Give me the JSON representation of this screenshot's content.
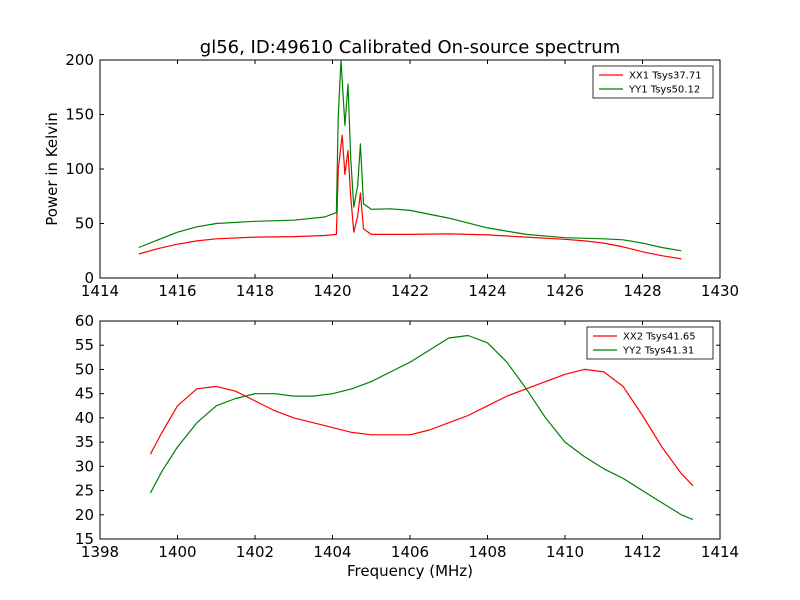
{
  "figure": {
    "title": "gl56, ID:49610 Calibrated On-source spectrum",
    "xlabel": "Frequency (MHz)",
    "ylabel_top": "Power in Kelvin"
  },
  "chart_data": [
    {
      "type": "line",
      "title": "gl56, ID:49610 Calibrated On-source spectrum",
      "xlabel": "",
      "ylabel": "Power in Kelvin",
      "xlim": [
        1414,
        1430
      ],
      "ylim": [
        0,
        200
      ],
      "xticks": [
        1414,
        1416,
        1418,
        1420,
        1422,
        1424,
        1426,
        1428,
        1430
      ],
      "yticks": [
        0,
        50,
        100,
        150,
        200
      ],
      "grid": false,
      "legend": "top-right",
      "series": [
        {
          "name": "XX1 Tsys37.71",
          "color": "#ff0000",
          "x": [
            1415,
            1415.5,
            1416,
            1416.5,
            1417,
            1418,
            1419,
            1419.8,
            1420.1,
            1420.15,
            1420.25,
            1420.32,
            1420.4,
            1420.47,
            1420.55,
            1420.65,
            1420.72,
            1420.8,
            1421,
            1422,
            1423,
            1424,
            1425,
            1426,
            1426.5,
            1427,
            1427.5,
            1428,
            1428.5,
            1429
          ],
          "y": [
            22,
            27,
            31,
            34,
            36,
            37.5,
            38,
            39,
            40,
            100,
            131,
            95,
            117,
            75,
            42,
            57,
            78,
            45,
            40,
            40,
            40.5,
            39.5,
            37.5,
            35.5,
            34,
            32,
            28.5,
            24,
            20.5,
            17.5
          ]
        },
        {
          "name": "YY1 Tsys50.12",
          "color": "#008000",
          "x": [
            1415,
            1415.5,
            1416,
            1416.5,
            1417,
            1418,
            1419,
            1419.8,
            1420.1,
            1420.15,
            1420.22,
            1420.32,
            1420.4,
            1420.47,
            1420.55,
            1420.65,
            1420.72,
            1420.8,
            1421,
            1421.5,
            1422,
            1423,
            1424,
            1425,
            1426,
            1427,
            1427.5,
            1428,
            1428.5,
            1429
          ],
          "y": [
            28,
            35,
            42,
            47,
            50,
            52,
            53,
            56,
            60,
            150,
            200,
            140,
            178,
            110,
            65,
            85,
            123,
            68,
            63,
            63.5,
            62,
            55,
            46,
            40,
            37,
            36,
            35,
            32,
            28,
            25
          ]
        }
      ]
    },
    {
      "type": "line",
      "title": "",
      "xlabel": "Frequency (MHz)",
      "ylabel": "",
      "xlim": [
        1398,
        1414
      ],
      "ylim": [
        15,
        60
      ],
      "xticks": [
        1398,
        1400,
        1402,
        1404,
        1406,
        1408,
        1410,
        1412,
        1414
      ],
      "yticks": [
        15,
        20,
        25,
        30,
        35,
        40,
        45,
        50,
        55,
        60
      ],
      "grid": false,
      "legend": "top-right",
      "series": [
        {
          "name": "XX2 Tsys41.65",
          "color": "#ff0000",
          "x": [
            1399.3,
            1399.6,
            1400,
            1400.5,
            1401,
            1401.5,
            1402,
            1402.5,
            1403,
            1403.5,
            1404,
            1404.5,
            1405,
            1405.5,
            1406,
            1406.5,
            1407,
            1407.5,
            1408,
            1408.5,
            1409,
            1409.5,
            1410,
            1410.5,
            1411,
            1411.5,
            1412,
            1412.5,
            1413,
            1413.3
          ],
          "y": [
            32.5,
            37,
            42.5,
            46,
            46.5,
            45.5,
            43.5,
            41.5,
            40,
            39,
            38,
            37,
            36.5,
            36.5,
            36.5,
            37.5,
            39,
            40.5,
            42.5,
            44.5,
            46,
            47.5,
            49,
            50,
            49.5,
            46.5,
            40.5,
            34,
            28.5,
            26
          ]
        },
        {
          "name": "YY2 Tsys41.31",
          "color": "#008000",
          "x": [
            1399.3,
            1399.6,
            1400,
            1400.5,
            1401,
            1401.5,
            1402,
            1402.5,
            1403,
            1403.5,
            1404,
            1404.5,
            1405,
            1405.5,
            1406,
            1406.5,
            1407,
            1407.5,
            1408,
            1408.5,
            1409,
            1409.5,
            1410,
            1410.5,
            1411,
            1411.5,
            1412,
            1412.5,
            1413,
            1413.3
          ],
          "y": [
            24.5,
            29,
            34,
            39,
            42.5,
            44,
            45,
            45,
            44.5,
            44.5,
            45,
            46,
            47.5,
            49.5,
            51.5,
            54,
            56.5,
            57,
            55.5,
            51.5,
            46,
            40,
            35,
            32,
            29.5,
            27.5,
            25,
            22.5,
            20,
            19
          ]
        }
      ]
    }
  ]
}
